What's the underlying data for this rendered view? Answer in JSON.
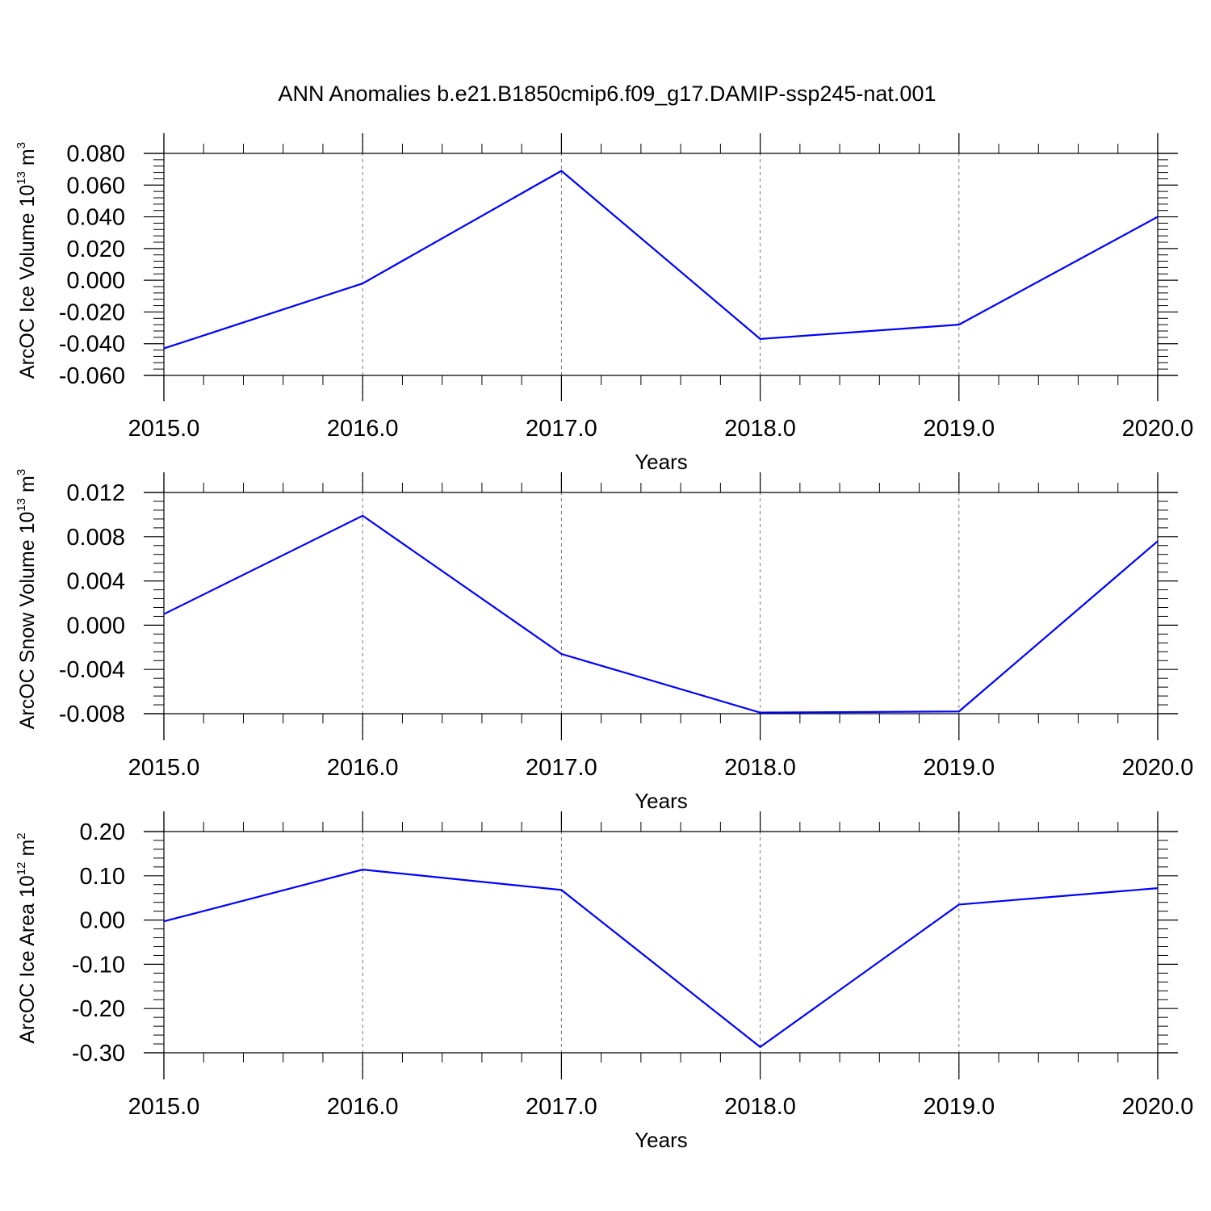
{
  "title": "ANN Anomalies b.e21.B1850cmip6.f09_g17.DAMIP-ssp245-nat.001",
  "colors": {
    "line": "#0000ff",
    "axis": "#000000",
    "grid": "#777777"
  },
  "chart_data": [
    {
      "type": "line",
      "ylabel": {
        "text": "ArcOC Ice Volume 10",
        "exponent": "13",
        "unit": "m",
        "unit_exponent": "3"
      },
      "xlabel": "Years",
      "x": [
        2015,
        2016,
        2017,
        2018,
        2019,
        2020
      ],
      "values": [
        -0.043,
        -0.002,
        0.069,
        -0.037,
        -0.028,
        0.04
      ],
      "xlim": [
        2015,
        2020
      ],
      "ylim": [
        -0.06,
        0.08
      ],
      "yticks": [
        "0.080",
        "0.060",
        "0.040",
        "0.020",
        "0.000",
        "-0.020",
        "-0.040",
        "-0.060"
      ],
      "ytick_values": [
        0.08,
        0.06,
        0.04,
        0.02,
        0.0,
        -0.02,
        -0.04,
        -0.06
      ],
      "xticks": [
        "2015.0",
        "2016.0",
        "2017.0",
        "2018.0",
        "2019.0",
        "2020.0"
      ],
      "grid": "vertical-dashed"
    },
    {
      "type": "line",
      "ylabel": {
        "text": "ArcOC Snow Volume 10",
        "exponent": "13",
        "unit": "m",
        "unit_exponent": "3"
      },
      "xlabel": "Years",
      "x": [
        2015,
        2016,
        2017,
        2018,
        2019,
        2020
      ],
      "values": [
        0.001,
        0.0099,
        -0.0026,
        -0.0079,
        -0.0078,
        0.0076
      ],
      "xlim": [
        2015,
        2020
      ],
      "ylim": [
        -0.009,
        0.012
      ],
      "yticks": [
        "0.012",
        "0.008",
        "0.004",
        "0.000",
        "-0.004",
        "-0.008"
      ],
      "ytick_values": [
        0.012,
        0.008,
        0.004,
        0.0,
        -0.004,
        -0.008
      ],
      "xticks": [
        "2015.0",
        "2016.0",
        "2017.0",
        "2018.0",
        "2019.0",
        "2020.0"
      ],
      "grid": "vertical-dashed"
    },
    {
      "type": "line",
      "ylabel": {
        "text": "ArcOC Ice Area 10",
        "exponent": "12",
        "unit": "m",
        "unit_exponent": "2"
      },
      "xlabel": "Years",
      "x": [
        2015,
        2016,
        2017,
        2018,
        2019,
        2020
      ],
      "values": [
        -0.003,
        0.114,
        0.068,
        -0.287,
        0.035,
        0.072
      ],
      "xlim": [
        2015,
        2020
      ],
      "ylim": [
        -0.3,
        0.2
      ],
      "yticks": [
        "0.20",
        "0.10",
        "0.00",
        "-0.10",
        "-0.20",
        "-0.30"
      ],
      "ytick_values": [
        0.2,
        0.1,
        0.0,
        -0.1,
        -0.2,
        -0.3
      ],
      "xticks": [
        "2015.0",
        "2016.0",
        "2017.0",
        "2018.0",
        "2019.0",
        "2020.0"
      ],
      "grid": "vertical-dashed"
    }
  ]
}
